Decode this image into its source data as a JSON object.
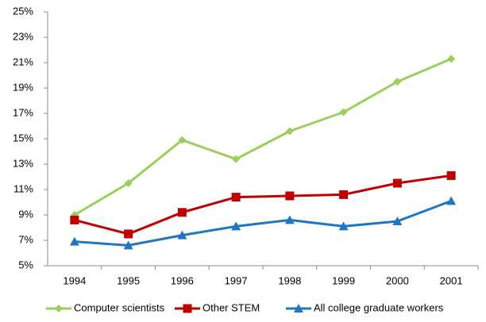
{
  "chart_data": {
    "type": "line",
    "categories": [
      "1994",
      "1995",
      "1996",
      "1997",
      "1998",
      "1999",
      "2000",
      "2001"
    ],
    "series": [
      {
        "name": "Computer scientists",
        "color": "#9bcf5b",
        "marker": "diamond",
        "values": [
          9.0,
          11.5,
          14.9,
          13.4,
          15.6,
          17.1,
          19.5,
          21.3
        ]
      },
      {
        "name": "Other STEM",
        "color": "#c00000",
        "marker": "square",
        "values": [
          8.6,
          7.5,
          9.2,
          10.4,
          10.5,
          10.6,
          11.5,
          12.1
        ]
      },
      {
        "name": "All college graduate workers",
        "color": "#1f77c4",
        "marker": "triangle",
        "values": [
          6.9,
          6.6,
          7.4,
          8.1,
          8.6,
          8.1,
          8.5,
          10.1
        ]
      }
    ],
    "ylim": [
      5,
      25
    ],
    "yticks": [
      {
        "value": 5,
        "label": "5%"
      },
      {
        "value": 7,
        "label": "7%"
      },
      {
        "value": 9,
        "label": "9%"
      },
      {
        "value": 11,
        "label": "11%"
      },
      {
        "value": 13,
        "label": "13%"
      },
      {
        "value": 15,
        "label": "15%"
      },
      {
        "value": 17,
        "label": "17%"
      },
      {
        "value": 19,
        "label": "19%"
      },
      {
        "value": 21,
        "label": "21%"
      },
      {
        "value": 23,
        "label": "23%"
      },
      {
        "value": 25,
        "label": "25%"
      }
    ],
    "grid": false,
    "legend": "bottom"
  }
}
